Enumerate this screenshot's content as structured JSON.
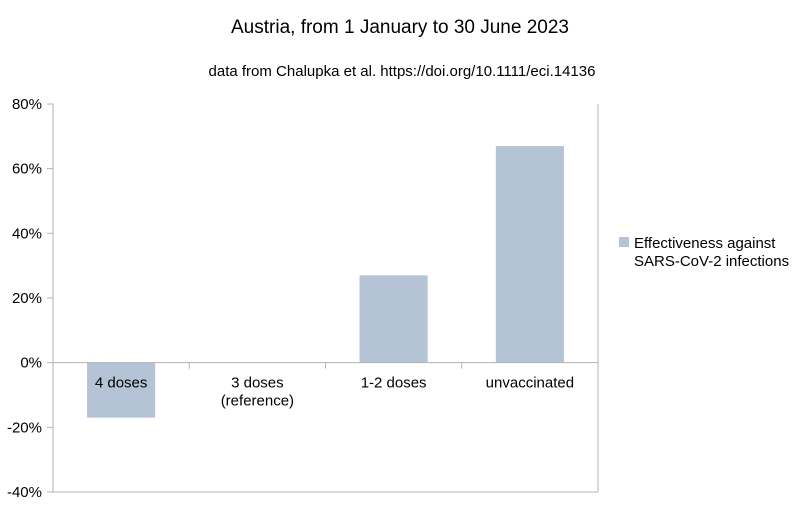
{
  "chart_data": {
    "type": "bar",
    "title": "Austria, from 1 January to 30 June 2023",
    "subtitle": "data from Chalupka et al. https://doi.org/10.1111/eci.14136",
    "categories": [
      [
        "4 doses"
      ],
      [
        "3 doses",
        "(reference)"
      ],
      [
        "1-2 doses"
      ],
      [
        "unvaccinated"
      ]
    ],
    "series": [
      {
        "name": [
          "Effectiveness against",
          "SARS-CoV-2 infections"
        ],
        "values": [
          -17,
          0,
          27,
          67
        ],
        "color": "#b4c3d6"
      }
    ],
    "ylim": [
      -40,
      80
    ],
    "yticks": [
      "-40%",
      "-20%",
      "0%",
      "20%",
      "40%",
      "60%",
      "80%"
    ],
    "ytick_values": [
      -40,
      -20,
      0,
      20,
      40,
      60,
      80
    ],
    "grid": false,
    "legend": "right"
  }
}
